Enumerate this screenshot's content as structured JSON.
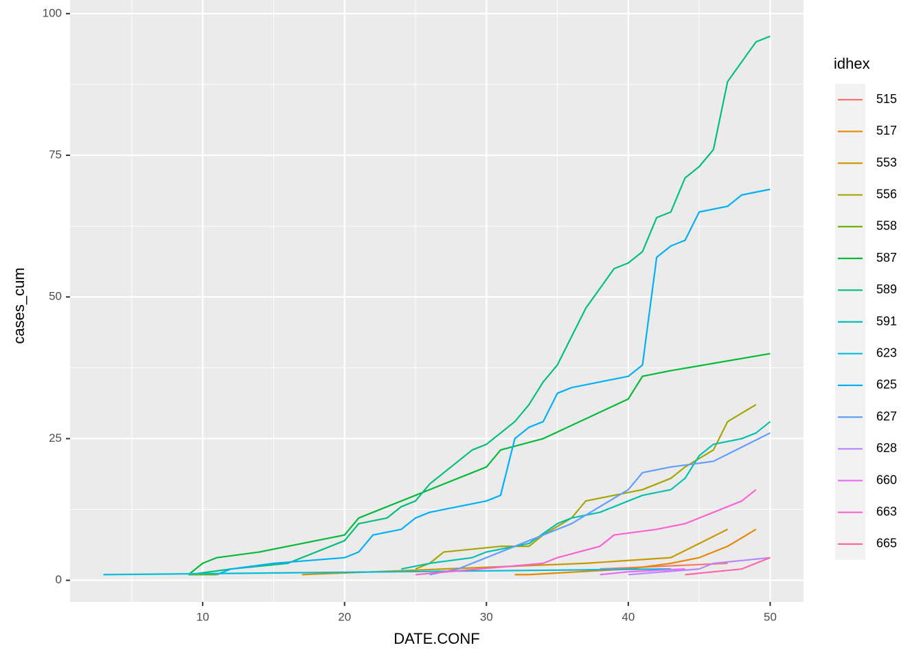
{
  "chart_data": {
    "type": "line",
    "x_label": "DATE.CONF",
    "y_label": "cases_cum",
    "legend_title": "idhex",
    "xlim": [
      0.65,
      52.35
    ],
    "ylim": [
      -3.8,
      102.4
    ],
    "xticks": [
      10,
      20,
      30,
      40,
      50
    ],
    "yticks": [
      0,
      25,
      50,
      75,
      100
    ],
    "grid": true,
    "legend_position": "right",
    "series": [
      {
        "name": "515",
        "color": "#F8766D",
        "x": [
          38,
          47
        ],
        "values": [
          2,
          3
        ]
      },
      {
        "name": "517",
        "color": "#E58700",
        "x": [
          32,
          33,
          40,
          43,
          45,
          47,
          49
        ],
        "values": [
          1,
          1,
          2,
          3,
          4,
          6,
          9
        ]
      },
      {
        "name": "553",
        "color": "#C99800",
        "x": [
          17,
          27,
          37,
          43,
          47
        ],
        "values": [
          1,
          2,
          3,
          4,
          9
        ]
      },
      {
        "name": "556",
        "color": "#A3A500",
        "x": [
          25,
          26,
          27,
          31,
          33,
          34,
          36,
          37,
          40,
          41,
          43,
          44,
          46,
          47,
          49
        ],
        "values": [
          2,
          3,
          5,
          6,
          6,
          8,
          11,
          14,
          15.5,
          16,
          18,
          20,
          23,
          28,
          31
        ]
      },
      {
        "name": "558",
        "color": "#6BB100",
        "x": [
          9,
          11
        ],
        "values": [
          1,
          1
        ]
      },
      {
        "name": "587",
        "color": "#00BA38",
        "x": [
          9,
          10,
          11,
          14,
          20,
          21,
          30,
          31,
          34,
          40,
          41,
          43,
          50
        ],
        "values": [
          1,
          3,
          4,
          5,
          8,
          11,
          20,
          23,
          25,
          32,
          36,
          37,
          40
        ]
      },
      {
        "name": "589",
        "color": "#00BF7D",
        "x": [
          9,
          12,
          16,
          20,
          21,
          23,
          24,
          25,
          26,
          29,
          30,
          32,
          33,
          34,
          35,
          37,
          39,
          40,
          41,
          42,
          43,
          44,
          45,
          46,
          47,
          49,
          50
        ],
        "values": [
          1,
          2,
          3,
          7,
          10,
          11,
          13,
          14,
          17,
          23,
          24,
          28,
          31,
          35,
          38,
          48,
          55,
          56,
          58,
          64,
          65,
          71,
          73,
          76,
          88,
          95,
          96
        ]
      },
      {
        "name": "591",
        "color": "#00C0AF",
        "x": [
          24,
          26,
          29,
          30,
          33,
          35,
          36,
          38,
          40,
          41,
          43,
          44,
          45,
          46,
          48,
          49,
          50
        ],
        "values": [
          2,
          3,
          4,
          5,
          6.5,
          10,
          11,
          12,
          14,
          15,
          16,
          18,
          22,
          24,
          25,
          26,
          28
        ]
      },
      {
        "name": "623",
        "color": "#00BCD8",
        "x": [
          3,
          43
        ],
        "values": [
          1,
          2
        ]
      },
      {
        "name": "625",
        "color": "#00B0F6",
        "x": [
          11,
          12,
          15,
          20,
          21,
          22,
          24,
          25,
          26,
          30,
          31,
          32,
          33,
          34,
          35,
          36,
          40,
          41,
          42,
          43,
          44,
          45,
          47,
          48,
          50
        ],
        "values": [
          1,
          2,
          3,
          4,
          5,
          8,
          9,
          11,
          12,
          14,
          15,
          25,
          27,
          28,
          33,
          34,
          36,
          38,
          57,
          59,
          60,
          65,
          66,
          68,
          69
        ]
      },
      {
        "name": "627",
        "color": "#619CFF",
        "x": [
          26,
          28,
          30,
          33,
          36,
          40,
          41,
          43,
          46,
          50
        ],
        "values": [
          1,
          2,
          4,
          7,
          10,
          16,
          19,
          20,
          21,
          26
        ]
      },
      {
        "name": "628",
        "color": "#B983FF",
        "x": [
          40,
          45,
          46,
          50
        ],
        "values": [
          1,
          2,
          3,
          4
        ]
      },
      {
        "name": "660",
        "color": "#E76BF3",
        "x": [
          38,
          40,
          44
        ],
        "values": [
          1,
          1.5,
          2
        ]
      },
      {
        "name": "663",
        "color": "#FD61D1",
        "x": [
          25,
          34,
          35,
          38,
          39,
          42,
          44,
          48,
          49
        ],
        "values": [
          1,
          3,
          4,
          6,
          8,
          9,
          10,
          14,
          16
        ]
      },
      {
        "name": "665",
        "color": "#FF67A4",
        "x": [
          44,
          48,
          50
        ],
        "values": [
          1,
          2,
          4
        ]
      }
    ]
  }
}
